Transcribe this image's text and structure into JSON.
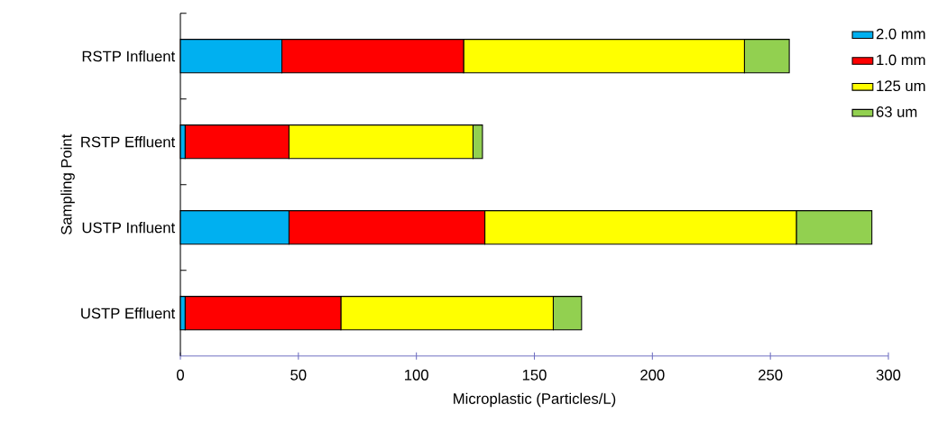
{
  "chart_data": {
    "type": "bar",
    "orientation": "horizontal",
    "stacked": true,
    "xlabel": "Microplastic (Particles/L)",
    "ylabel": "Sampling Point",
    "categories": [
      "RSTP Influent",
      "RSTP Effluent",
      "USTP Influent",
      "USTP Effluent"
    ],
    "series": [
      {
        "name": "2.0 mm",
        "color": "#00b0f0",
        "values": [
          43,
          2,
          46,
          2
        ]
      },
      {
        "name": "1.0 mm",
        "color": "#ff0000",
        "values": [
          77,
          44,
          83,
          66
        ]
      },
      {
        "name": "125 um",
        "color": "#ffff00",
        "values": [
          119,
          78,
          132,
          90
        ]
      },
      {
        "name": "63 um",
        "color": "#92d050",
        "values": [
          19,
          4,
          32,
          12
        ]
      }
    ],
    "xlim": [
      0,
      300
    ],
    "xticks": [
      0,
      50,
      100,
      150,
      200,
      250,
      300
    ],
    "legend": "top right"
  }
}
